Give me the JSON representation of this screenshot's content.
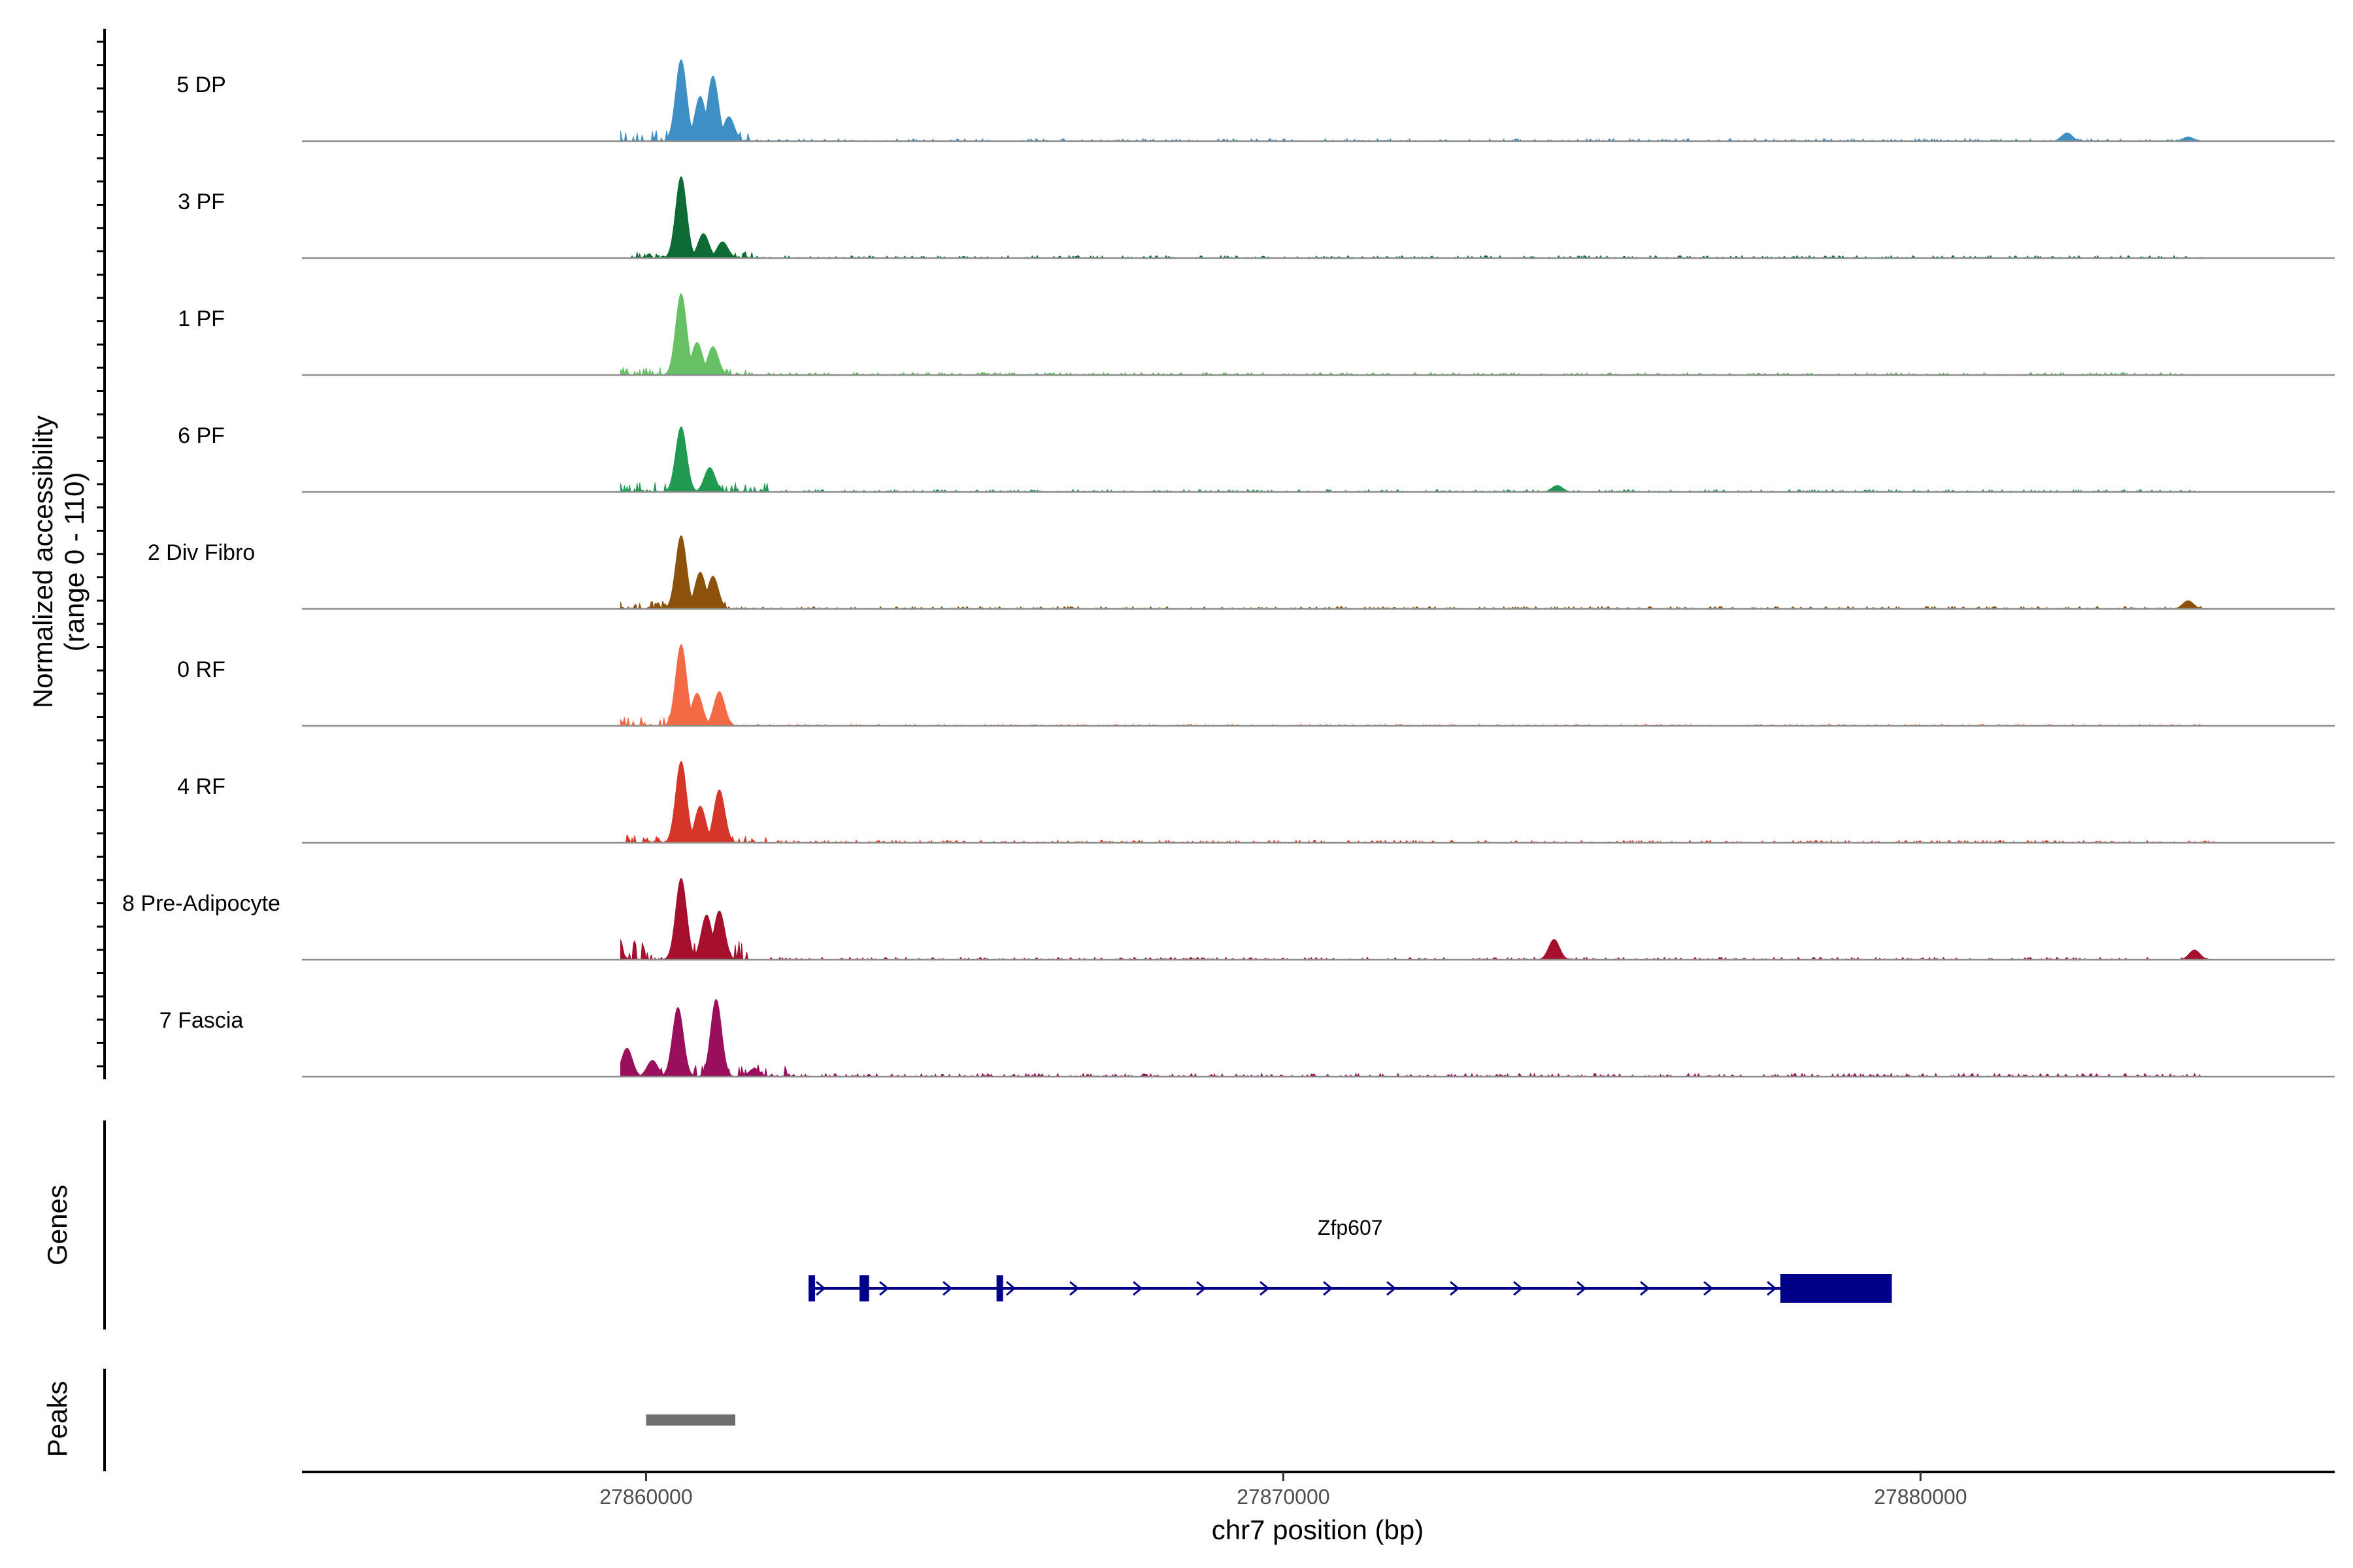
{
  "chart_data": {
    "type": "area",
    "title": "",
    "yaxis_main_label_line1": "Normalized accessibility",
    "yaxis_main_label_line2": "(range 0 - 110)",
    "ylim": [
      0,
      110
    ],
    "xlabel": "chr7 position (bp)",
    "xlim": [
      27854600,
      27886500
    ],
    "x_ticks": [
      {
        "value": 27860000,
        "label": "27860000"
      },
      {
        "value": 27870000,
        "label": "27870000"
      },
      {
        "value": 27880000,
        "label": "27880000"
      }
    ],
    "tracks": [
      {
        "name": "5 DP",
        "color": "#3E8FC4",
        "peaks": [
          [
            27860550,
            100
          ],
          [
            27860850,
            55
          ],
          [
            27861050,
            80
          ],
          [
            27861300,
            30
          ],
          [
            27882300,
            10
          ],
          [
            27884200,
            5
          ]
        ],
        "noise": [
          [
            27859500,
            27861600,
            14
          ],
          [
            27861600,
            27884500,
            3
          ]
        ]
      },
      {
        "name": "3 PF",
        "color": "#0B6B33",
        "peaks": [
          [
            27860550,
            100
          ],
          [
            27860900,
            30
          ],
          [
            27861200,
            20
          ]
        ],
        "noise": [
          [
            27859800,
            27861800,
            8
          ],
          [
            27856700,
            27884400,
            3
          ]
        ]
      },
      {
        "name": "1 PF",
        "color": "#66C164",
        "peaks": [
          [
            27860550,
            100
          ],
          [
            27860800,
            40
          ],
          [
            27861050,
            35
          ],
          [
            27859500,
            12
          ]
        ],
        "noise": [
          [
            27859300,
            27861600,
            10
          ],
          [
            27856700,
            27884400,
            3
          ]
        ]
      },
      {
        "name": "6 PF",
        "color": "#1F9A50",
        "peaks": [
          [
            27860550,
            80
          ],
          [
            27861000,
            30
          ],
          [
            27859400,
            18
          ],
          [
            27874300,
            8
          ]
        ],
        "noise": [
          [
            27859300,
            27861900,
            12
          ],
          [
            27857000,
            27884300,
            3
          ]
        ]
      },
      {
        "name": "2 Div Fibro",
        "color": "#8C510A",
        "peaks": [
          [
            27860550,
            90
          ],
          [
            27860850,
            45
          ],
          [
            27861050,
            40
          ],
          [
            27884200,
            10
          ]
        ],
        "noise": [
          [
            27859500,
            27861400,
            10
          ],
          [
            27857000,
            27884500,
            3
          ]
        ]
      },
      {
        "name": "0 RF",
        "color": "#F26B45",
        "peaks": [
          [
            27860550,
            100
          ],
          [
            27860800,
            40
          ],
          [
            27861150,
            42
          ],
          [
            27859500,
            15
          ]
        ],
        "noise": [
          [
            27859300,
            27861500,
            12
          ],
          [
            27856000,
            27884500,
            2
          ]
        ]
      },
      {
        "name": "4 RF",
        "color": "#D63627",
        "peaks": [
          [
            27860550,
            100
          ],
          [
            27860850,
            45
          ],
          [
            27861150,
            65
          ],
          [
            27859400,
            10
          ]
        ],
        "noise": [
          [
            27859300,
            27861900,
            10
          ],
          [
            27856000,
            27884600,
            3
          ]
        ]
      },
      {
        "name": "8 Pre-Adipocyte",
        "color": "#A50F2C",
        "peaks": [
          [
            27860550,
            100
          ],
          [
            27860950,
            55
          ],
          [
            27861150,
            60
          ],
          [
            27859500,
            35
          ],
          [
            27874250,
            25
          ],
          [
            27884300,
            12
          ]
        ],
        "noise": [
          [
            27859300,
            27861600,
            25
          ],
          [
            27857200,
            27884500,
            3
          ]
        ]
      },
      {
        "name": "7 Fascia",
        "color": "#9A0F5C",
        "peaks": [
          [
            27860500,
            85
          ],
          [
            27861100,
            95
          ],
          [
            27859700,
            35
          ],
          [
            27860100,
            20
          ],
          [
            27861700,
            10
          ]
        ],
        "noise": [
          [
            27859200,
            27862200,
            15
          ],
          [
            27855500,
            27884500,
            4
          ]
        ]
      }
    ],
    "genes_panel_label": "Genes",
    "gene": {
      "name": "Zfp607",
      "color": "#00008B",
      "start": 27862550,
      "end": 27879550,
      "strand": "+",
      "exons": [
        [
          27862550,
          27862600
        ],
        [
          27863350,
          27863500
        ],
        [
          27865500,
          27865600
        ],
        [
          27877800,
          27879550
        ]
      ]
    },
    "peaks_panel_label": "Peaks",
    "peak_regions": [
      {
        "start": 27860000,
        "end": 27861400,
        "color": "#6E6E6E"
      }
    ]
  }
}
